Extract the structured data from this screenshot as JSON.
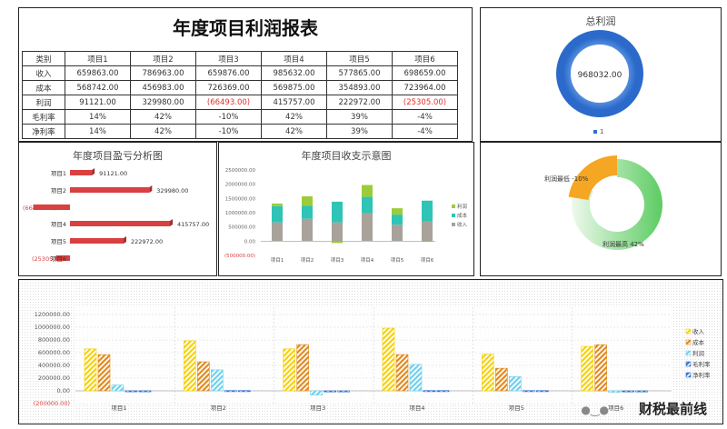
{
  "title": "年度项目利润报表",
  "table": {
    "header": [
      "类别",
      "项目1",
      "项目2",
      "项目3",
      "项目4",
      "项目5",
      "项目6"
    ],
    "rows": [
      {
        "label": "收入",
        "cells": [
          "659863.00",
          "786963.00",
          "659876.00",
          "985632.00",
          "577865.00",
          "698659.00"
        ]
      },
      {
        "label": "成本",
        "cells": [
          "568742.00",
          "456983.00",
          "726369.00",
          "569875.00",
          "354893.00",
          "723964.00"
        ]
      },
      {
        "label": "利润",
        "cells": [
          "91121.00",
          "329980.00",
          "(66493.00)",
          "415757.00",
          "222972.00",
          "(25305.00)"
        ]
      },
      {
        "label": "毛利率",
        "cells": [
          "14%",
          "42%",
          "-10%",
          "42%",
          "39%",
          "-4%"
        ]
      },
      {
        "label": "净利率",
        "cells": [
          "14%",
          "42%",
          "-10%",
          "42%",
          "39%",
          "-4%"
        ]
      }
    ]
  },
  "colors": {
    "income": "#f5d10c",
    "cost": "#e08a1e",
    "profit": "#6fd0ec",
    "red": "#d94040",
    "teal": "#2ec4b6",
    "green": "#9ccc3a",
    "gray": "#a8a29a",
    "blue": "#2e6fd0",
    "ring_green": "#6fd070",
    "ring_orange": "#f5a623"
  },
  "chart_data": [
    {
      "id": "donut",
      "type": "pie",
      "title": "总利润",
      "slices": [
        {
          "name": "1",
          "value": 968032.0
        }
      ],
      "center_label": "968032.00",
      "legend": [
        "1"
      ]
    },
    {
      "id": "profit_bar",
      "type": "bar",
      "title": "年度项目盈亏分析图",
      "orientation": "horizontal",
      "categories": [
        "项目1",
        "项目2",
        "项目3",
        "项目4",
        "项目5",
        "项目6"
      ],
      "values": [
        91121,
        329980,
        -66493,
        415757,
        222972,
        -25305
      ],
      "labels": [
        "91121.00",
        "329980.00",
        "(66493.00)",
        "415757.00",
        "222972.00",
        "(25305.00)"
      ]
    },
    {
      "id": "stacked",
      "type": "bar",
      "title": "年度项目收支示意图",
      "stacked": true,
      "categories": [
        "项目1",
        "项目2",
        "项目3",
        "项目4",
        "项目5",
        "项目6"
      ],
      "yticks": [
        "2500000.00",
        "2000000.00",
        "1500000.00",
        "1000000.00",
        "500000.00",
        "0.00",
        "(500000.00)"
      ],
      "ylim": [
        -500000,
        2500000
      ],
      "series": [
        {
          "name": "收入",
          "values": [
            659863,
            786963,
            659876,
            985632,
            577865,
            698659
          ]
        },
        {
          "name": "成本",
          "values": [
            568742,
            456983,
            726369,
            569875,
            354893,
            723964
          ]
        },
        {
          "name": "利润",
          "values": [
            91121,
            329980,
            -66493,
            415757,
            222972,
            -25305
          ]
        }
      ],
      "legend": [
        "利润",
        "成本",
        "收入"
      ]
    },
    {
      "id": "margin_ring",
      "type": "pie",
      "labels": [
        "利润最低 -10%",
        "利润最高 42%"
      ],
      "values": [
        10,
        42
      ]
    },
    {
      "id": "grouped",
      "type": "bar",
      "legend_position": "right",
      "categories": [
        "项目1",
        "项目2",
        "项目3",
        "项目4",
        "项目5",
        "项目6"
      ],
      "yticks": [
        "1200000.00",
        "1000000.00",
        "800000.00",
        "600000.00",
        "400000.00",
        "200000.00",
        "0.00",
        "(200000.00)"
      ],
      "ylim": [
        -200000,
        1200000
      ],
      "series": [
        {
          "name": "收入",
          "values": [
            659863,
            786963,
            659876,
            985632,
            577865,
            698659
          ]
        },
        {
          "name": "成本",
          "values": [
            568742,
            456983,
            726369,
            569875,
            354893,
            723964
          ]
        },
        {
          "name": "利润",
          "values": [
            91121,
            329980,
            -66493,
            415757,
            222972,
            -25305
          ]
        },
        {
          "name": "毛利率",
          "values": [
            0.14,
            0.42,
            -0.1,
            0.42,
            0.39,
            -0.04
          ]
        },
        {
          "name": "净利率",
          "values": [
            0.14,
            0.42,
            -0.1,
            0.42,
            0.39,
            -0.04
          ]
        }
      ]
    }
  ],
  "watermark": "财税最前线"
}
